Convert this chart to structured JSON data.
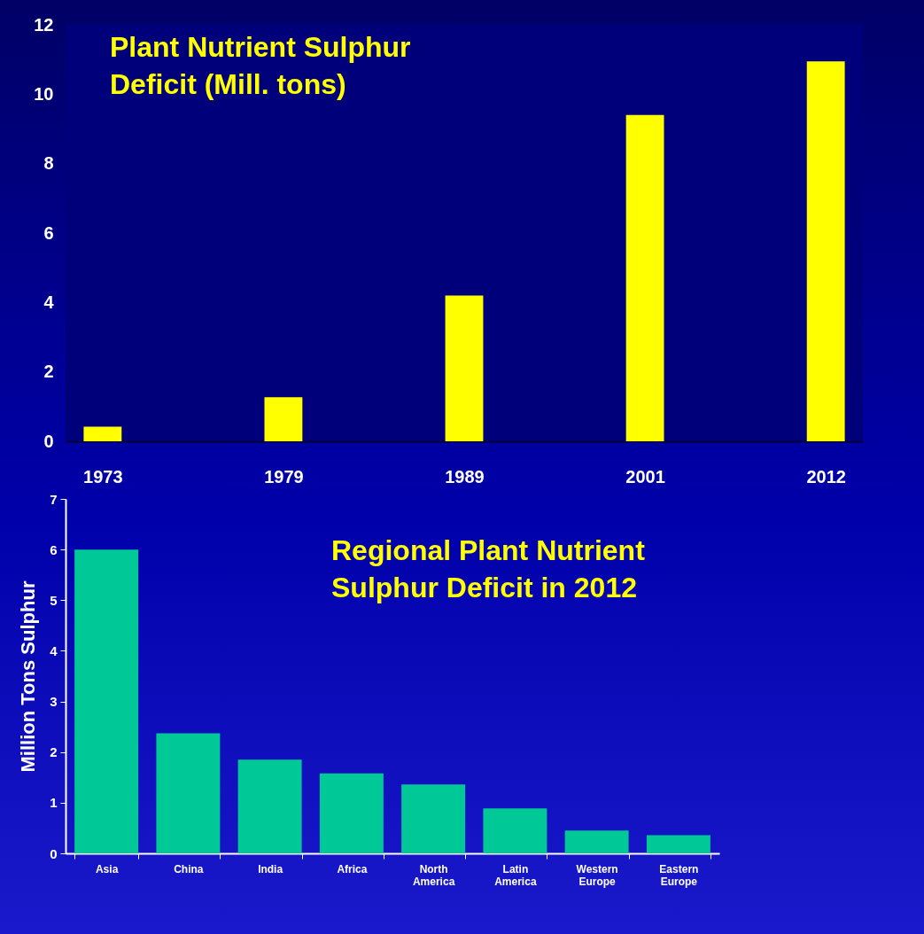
{
  "chart_data": [
    {
      "type": "bar",
      "title": "Plant Nutrient Sulphur Deficit (Mill. tons)",
      "categories": [
        "1973",
        "1979",
        "1989",
        "2001",
        "2012"
      ],
      "values": [
        0.42,
        1.27,
        4.2,
        9.4,
        10.95
      ],
      "color": "#ffff00",
      "ylim": [
        0,
        12
      ],
      "yticks": [
        0,
        2,
        4,
        6,
        8,
        10,
        12
      ]
    },
    {
      "type": "bar",
      "title": "Regional Plant Nutrient Sulphur Deficit in 2012",
      "ylabel": "Million Tons Sulphur",
      "categories": [
        "Asia",
        "China",
        "India",
        "Africa",
        "North America",
        "Latin America",
        "Western Europe",
        "Eastern Europe"
      ],
      "values": [
        6.0,
        2.37,
        1.85,
        1.58,
        1.36,
        0.89,
        0.45,
        0.36
      ],
      "color": "#00c896",
      "ylim": [
        0,
        7
      ],
      "yticks": [
        0,
        1,
        2,
        3,
        4,
        5,
        6,
        7
      ]
    }
  ]
}
